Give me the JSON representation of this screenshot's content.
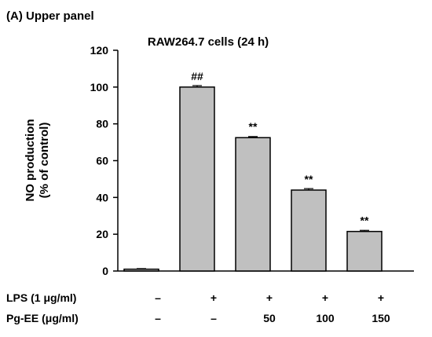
{
  "panel_label": "(A) Upper panel",
  "chart_data": {
    "type": "bar",
    "title": "RAW264.7 cells (24 h)",
    "ylabel_line1": "NO production",
    "ylabel_line2": "(% of control)",
    "xlabel": "",
    "ylim": [
      0,
      120
    ],
    "yticks": [
      0,
      20,
      40,
      60,
      80,
      100,
      120
    ],
    "categories": [
      "control",
      "LPS",
      "Pg-EE 50",
      "Pg-EE 100",
      "Pg-EE 150"
    ],
    "values": [
      1,
      100,
      72.5,
      44,
      21.5
    ],
    "errors": [
      0.3,
      0.8,
      0.6,
      0.8,
      0.6
    ],
    "significance": [
      "",
      "##",
      "**",
      "**",
      "**"
    ],
    "bar_color": "#c0c0c0",
    "conditions": [
      {
        "label": "LPS (1 μg/ml)",
        "values": [
          "–",
          "+",
          "+",
          "+",
          "+"
        ]
      },
      {
        "label": "Pg-EE (μg/ml)",
        "values": [
          "–",
          "–",
          "50",
          "100",
          "150"
        ]
      }
    ]
  }
}
